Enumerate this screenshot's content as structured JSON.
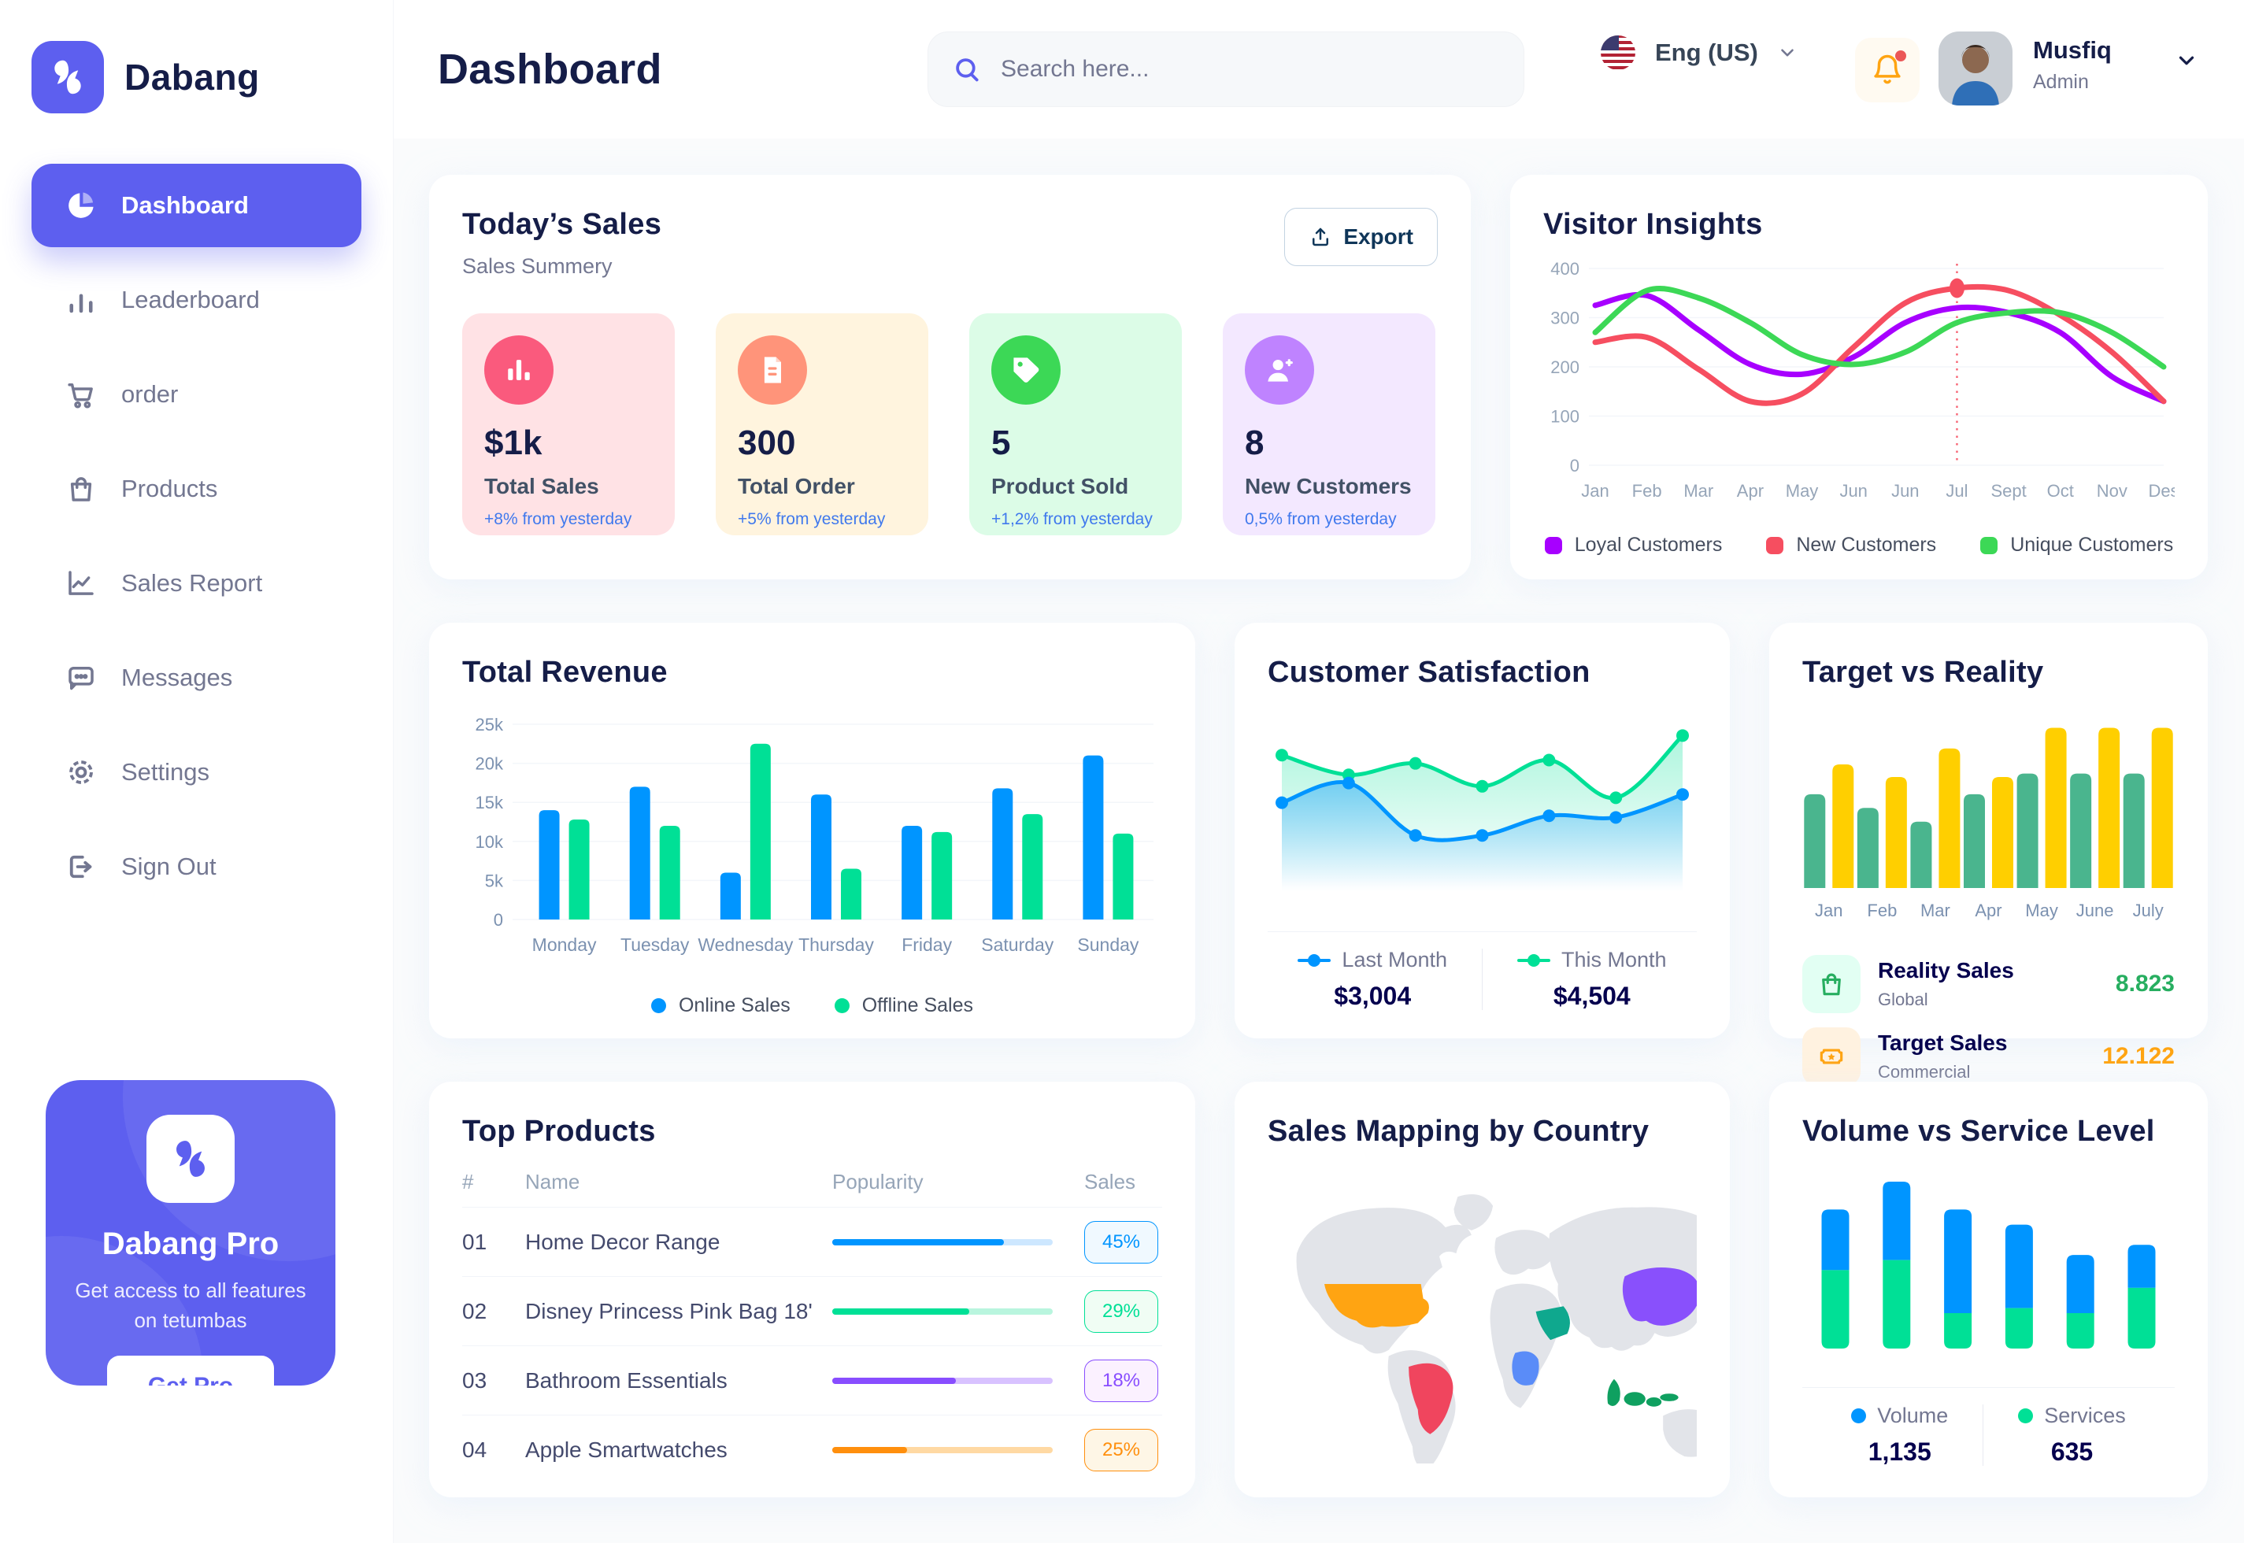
{
  "brand": {
    "name": "Dabang"
  },
  "header": {
    "title": "Dashboard",
    "search_placeholder": "Search here...",
    "language": "Eng (US)",
    "user": {
      "name": "Musfiq",
      "role": "Admin"
    }
  },
  "sidebar": {
    "items": [
      {
        "label": "Dashboard",
        "icon": "dashboard",
        "active": true
      },
      {
        "label": "Leaderboard",
        "icon": "leaderboard",
        "active": false
      },
      {
        "label": "order",
        "icon": "cart",
        "active": false
      },
      {
        "label": "Products",
        "icon": "bag",
        "active": false
      },
      {
        "label": "Sales Report",
        "icon": "sales",
        "active": false
      },
      {
        "label": "Messages",
        "icon": "messages",
        "active": false
      },
      {
        "label": "Settings",
        "icon": "settings",
        "active": false
      },
      {
        "label": "Sign Out",
        "icon": "signout",
        "active": false
      }
    ],
    "pro": {
      "title": "Dabang Pro",
      "text": "Get access to all features on tetumbas",
      "button": "Get Pro"
    }
  },
  "today_sales": {
    "title": "Today’s Sales",
    "subtitle": "Sales Summery",
    "export_label": "Export",
    "stats": [
      {
        "value": "$1k",
        "label": "Total Sales",
        "delta": "+8% from yesterday",
        "bg": "#FFE2E5",
        "circle": "#FA5A7D",
        "icon": "chart"
      },
      {
        "value": "300",
        "label": "Total Order",
        "delta": "+5% from yesterday",
        "bg": "#FFF4DE",
        "circle": "#FF947A",
        "icon": "file"
      },
      {
        "value": "5",
        "label": "Product Sold",
        "delta": "+1,2% from yesterday",
        "bg": "#DCFCE7",
        "circle": "#3CD856",
        "icon": "tag"
      },
      {
        "value": "8",
        "label": "New Customers",
        "delta": "0,5% from yesterday",
        "bg": "#F3E8FF",
        "circle": "#BF83FF",
        "icon": "user"
      }
    ]
  },
  "chart_data": [
    {
      "id": "visitor_insights",
      "type": "line",
      "title": "Visitor Insights",
      "x": [
        "Jan",
        "Feb",
        "Mar",
        "Apr",
        "May",
        "Jun",
        "Jun",
        "Jul",
        "Sept",
        "Oct",
        "Nov",
        "Des"
      ],
      "ylim": [
        0,
        400
      ],
      "yticks": [
        0,
        100,
        200,
        300,
        400
      ],
      "grid": true,
      "legend_position": "bottom",
      "series": [
        {
          "name": "Loyal Customers",
          "color": "#A700FF",
          "values": [
            325,
            345,
            275,
            205,
            185,
            220,
            290,
            320,
            310,
            270,
            180,
            130
          ]
        },
        {
          "name": "New Customers",
          "color": "#F64E60",
          "values": [
            250,
            260,
            195,
            130,
            145,
            240,
            330,
            360,
            355,
            305,
            230,
            130
          ]
        },
        {
          "name": "Unique Customers",
          "color": "#3CD856",
          "values": [
            270,
            355,
            340,
            290,
            225,
            205,
            230,
            290,
            310,
            310,
            270,
            200
          ]
        }
      ],
      "highlight": {
        "x_index": 7,
        "series_index": 1
      }
    },
    {
      "id": "total_revenue",
      "type": "bar",
      "title": "Total Revenue",
      "categories": [
        "Monday",
        "Tuesday",
        "Wednesday",
        "Thursday",
        "Friday",
        "Saturday",
        "Sunday"
      ],
      "ymax": 25000,
      "yticks": [
        "0",
        "5k",
        "10k",
        "15k",
        "20k",
        "25k"
      ],
      "grid": true,
      "legend_position": "bottom",
      "series": [
        {
          "name": "Online Sales",
          "color": "#0095FF",
          "values": [
            14000,
            17000,
            6000,
            16000,
            12000,
            16800,
            21000
          ]
        },
        {
          "name": "Offline Sales",
          "color": "#00E096",
          "values": [
            12800,
            12000,
            22500,
            6500,
            11200,
            13500,
            11000
          ]
        }
      ]
    },
    {
      "id": "customer_satisfaction",
      "type": "area",
      "title": "Customer Satisfaction",
      "x": [
        1,
        2,
        3,
        4,
        5,
        6,
        7
      ],
      "ylim": [
        0,
        100
      ],
      "grid": false,
      "legend_position": "bottom",
      "series": [
        {
          "name": "Last Month",
          "value_label": "$3,004",
          "color": "#0095FF",
          "values": [
            55,
            67,
            35,
            35,
            47,
            46,
            60
          ]
        },
        {
          "name": "This Month",
          "value_label": "$4,504",
          "color": "#00E096",
          "values": [
            84,
            72,
            79,
            65,
            81,
            58,
            96
          ]
        }
      ]
    },
    {
      "id": "target_vs_reality",
      "type": "bar",
      "title": "Target vs Reality",
      "categories": [
        "Jan",
        "Feb",
        "Mar",
        "Apr",
        "May",
        "June",
        "July"
      ],
      "ymax": 15,
      "grid": false,
      "legend_position": "bottom",
      "series": [
        {
          "name": "Reality Sales",
          "subtitle": "Global",
          "color": "#4AB58E",
          "value_label": "8.823",
          "value_color": "#27AE60",
          "icon": "bag",
          "icon_bg": "#E2FFF3",
          "values": [
            8.2,
            7.0,
            5.8,
            8.2,
            10.0,
            10.0,
            10.0
          ]
        },
        {
          "name": "Target Sales",
          "subtitle": "Commercial",
          "color": "#FFCF00",
          "value_label": "12.122",
          "value_color": "#FFA412",
          "icon": "ticket",
          "icon_bg": "#FFF2E0",
          "values": [
            10.8,
            9.7,
            12.2,
            9.7,
            14.0,
            14.0,
            14.0
          ]
        }
      ]
    },
    {
      "id": "volume_service",
      "type": "stacked-bar",
      "title": "Volume vs Service Level",
      "categories": [
        "1",
        "2",
        "3",
        "4",
        "5",
        "6"
      ],
      "grid": false,
      "legend_position": "bottom",
      "series": [
        {
          "name": "Volume",
          "color": "#0095FF",
          "value_label": "1,135",
          "values": [
            24,
            31,
            41,
            33,
            23,
            17
          ]
        },
        {
          "name": "Services",
          "color": "#00E096",
          "value_label": "635",
          "values": [
            31,
            35,
            14,
            16,
            14,
            24
          ]
        }
      ]
    },
    {
      "id": "sales_map",
      "type": "map",
      "title": "Sales Mapping by Country",
      "base_color": "#E2E4E9",
      "countries": [
        {
          "name": "United States",
          "color": "#FFA412"
        },
        {
          "name": "Brazil",
          "color": "#F0455E"
        },
        {
          "name": "Saudi Arabia",
          "color": "#0FA88E"
        },
        {
          "name": "Dem. Rep. Congo",
          "color": "#5A8CF8"
        },
        {
          "name": "China",
          "color": "#8950FC"
        },
        {
          "name": "Indonesia",
          "color": "#0FA060"
        }
      ]
    },
    {
      "id": "top_products",
      "type": "table",
      "title": "Top Products",
      "headers": [
        "#",
        "Name",
        "Popularity",
        "Sales"
      ],
      "rows": [
        {
          "num": "01",
          "name": "Home Decor Range",
          "popularity": 78,
          "bar": "#0095FF",
          "track": "#CDE7FF",
          "sales": "45%",
          "badge_bg": "#F0F9FF",
          "badge_color": "#0095FF"
        },
        {
          "num": "02",
          "name": "Disney Princess Pink Bag 18'",
          "popularity": 62,
          "bar": "#00E096",
          "track": "#B9F5DE",
          "sales": "29%",
          "badge_bg": "#F0FDF4",
          "badge_color": "#00E096"
        },
        {
          "num": "03",
          "name": "Bathroom Essentials",
          "popularity": 56,
          "bar": "#884DFF",
          "track": "#D8C2FF",
          "sales": "18%",
          "badge_bg": "#FBF1FF",
          "badge_color": "#884DFF"
        },
        {
          "num": "04",
          "name": "Apple Smartwatches",
          "popularity": 34,
          "bar": "#FF8F0D",
          "track": "#FFD9A3",
          "sales": "25%",
          "badge_bg": "#FEF6E6",
          "badge_color": "#FF8F0D"
        }
      ]
    }
  ],
  "colors": {
    "primary": "#5D5FEF",
    "heading": "#151D48",
    "muted": "#737791",
    "axis": "#96A5B8"
  }
}
